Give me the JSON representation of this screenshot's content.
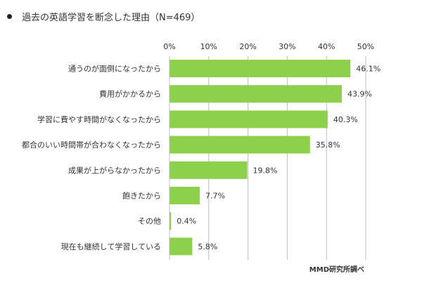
{
  "chart_data": {
    "type": "bar",
    "orientation": "horizontal",
    "title": "過去の英語学習を断念した理由（N=469）",
    "categories": [
      "通うのが面倒になったから",
      "費用がかかるから",
      "学習に費やす時間がなくなったから",
      "都合のいい時間帯が合わなくなったから",
      "成果が上がらなかったから",
      "飽きたから",
      "その他",
      "現在も継続して学習している"
    ],
    "values": [
      46.1,
      43.9,
      40.3,
      35.8,
      19.8,
      7.7,
      0.4,
      5.8
    ],
    "value_labels": [
      "46.1%",
      "43.9%",
      "40.3%",
      "35.8%",
      "19.8%",
      "7.7%",
      "0.4%",
      "5.8%"
    ],
    "xlim": [
      0,
      50
    ],
    "x_ticks": [
      "0%",
      "10%",
      "20%",
      "30%",
      "40%",
      "50%"
    ],
    "x_tick_values": [
      0,
      10,
      20,
      30,
      40,
      50
    ],
    "grid": true,
    "axis_position": "top",
    "bar_color": "#8cd04b",
    "grid_color": "#bbbbbb",
    "source": "MMD研究所調べ"
  }
}
